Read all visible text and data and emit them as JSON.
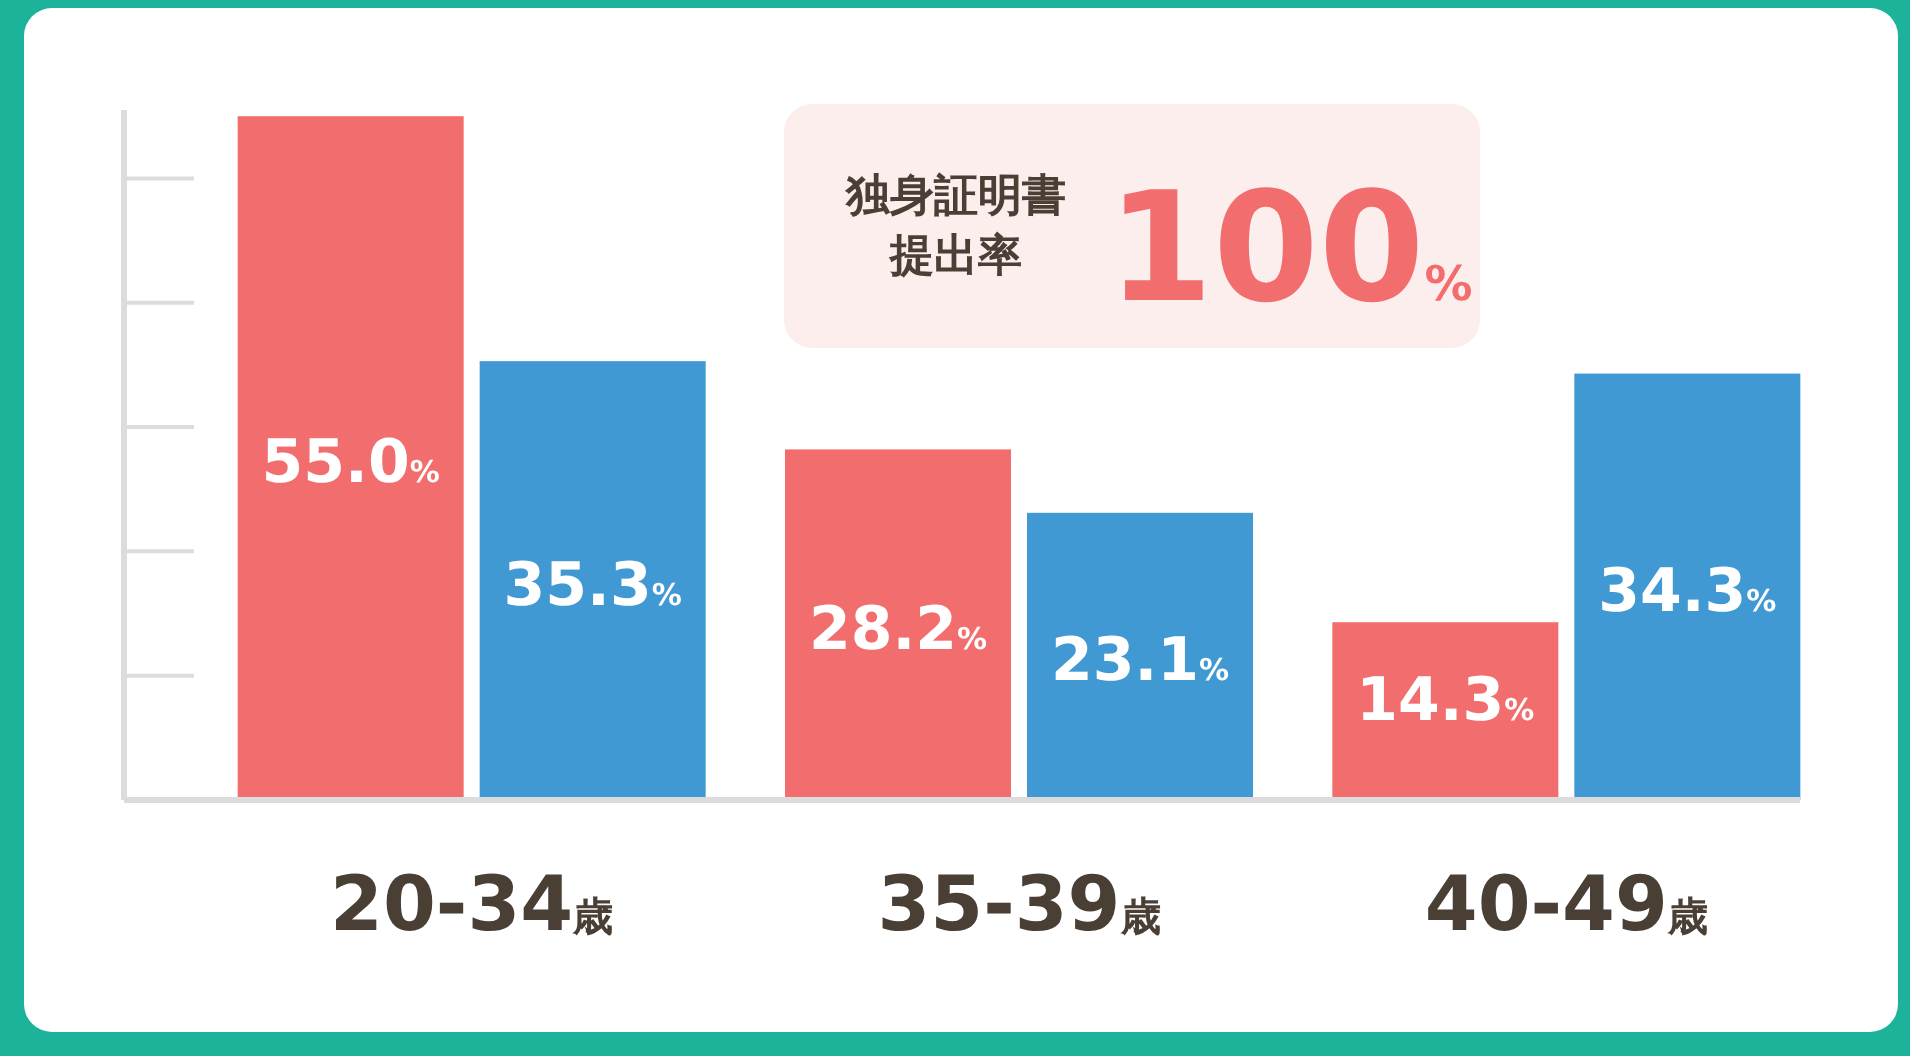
{
  "chart_data": {
    "type": "bar",
    "categories": [
      "20-34歳",
      "35-39歳",
      "40-49歳"
    ],
    "series": [
      {
        "color": "#f26e6e",
        "values": [
          55.0,
          28.2,
          14.3
        ],
        "value_labels": [
          "55.0%",
          "28.2%",
          "14.3%"
        ]
      },
      {
        "color": "#4199d3",
        "values": [
          35.3,
          23.1,
          34.3
        ],
        "value_labels": [
          "35.3%",
          "23.1%",
          "34.3%"
        ]
      }
    ],
    "ylim": [
      0,
      55.5
    ],
    "tick_labels": "x",
    "annotations": [
      "独身証明書提出率",
      "100%"
    ]
  }
}
